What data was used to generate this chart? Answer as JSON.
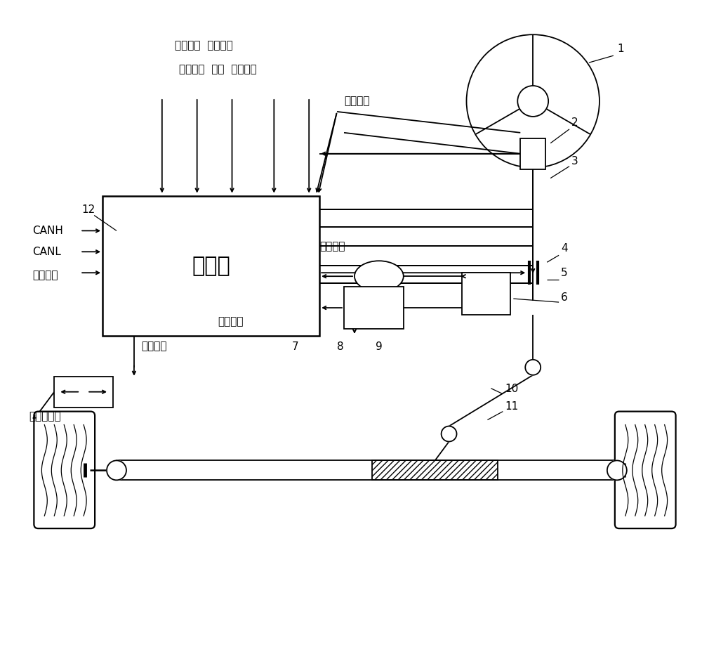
{
  "bg_color": "#ffffff",
  "line_color": "#000000",
  "controller_label": "控制器",
  "signal_row1": "模式选择  车速信号",
  "signal_row2": "脉冲给定  方向  点火信号",
  "torque_signal": "转矩信号",
  "current_feedback": "电流反馈",
  "speed_feedback": "转速反馈",
  "position_feedback": "位置反馈",
  "turn_light": "转向灯控制",
  "canh": "CANH",
  "canl": "CANL",
  "work_ind": "工作指示",
  "num1": "1",
  "num2": "2",
  "num3": "3",
  "num4": "4",
  "num5": "5",
  "num6": "6",
  "num7": "7",
  "num8": "8",
  "num9": "9",
  "num10": "10",
  "num11": "11",
  "num12": "12"
}
